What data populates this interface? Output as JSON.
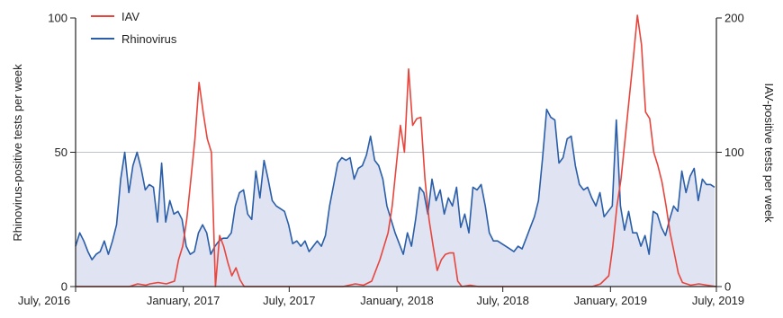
{
  "chart_data": {
    "type": "line",
    "x_axis": {
      "type": "date",
      "range": [
        "2016-07-01",
        "2019-07-01"
      ],
      "ticks": [
        {
          "date": "2016-07-01",
          "label": "July, 2016"
        },
        {
          "date": "2017-01-01",
          "label": "January, 2017"
        },
        {
          "date": "2017-07-01",
          "label": "July, 2017"
        },
        {
          "date": "2018-01-01",
          "label": "January, 2018"
        },
        {
          "date": "2018-07-01",
          "label": "July, 2018"
        },
        {
          "date": "2019-01-01",
          "label": "January, 2019"
        },
        {
          "date": "2019-07-01",
          "label": "July, 2019"
        }
      ]
    },
    "y_left": {
      "label": "Rhinovirus-positive tests per week",
      "range": [
        0,
        100
      ],
      "ticks": [
        0,
        50,
        100
      ]
    },
    "y_right": {
      "label": "IAV-positive tests per week",
      "range": [
        0,
        200
      ],
      "ticks": [
        0,
        100,
        200
      ]
    },
    "grid": {
      "horizontal": [
        50
      ]
    },
    "legend": {
      "placement": "top-left",
      "entries": [
        {
          "name": "IAV",
          "color": "#e8453c"
        },
        {
          "name": "Rhinovirus",
          "color": "#2a5ea8"
        }
      ]
    },
    "series": [
      {
        "name": "Rhinovirus",
        "axis": "left",
        "color": "#2a5ea8",
        "fill": "#dfe3f2",
        "points": [
          [
            "2016-07-01",
            15
          ],
          [
            "2016-07-08",
            20
          ],
          [
            "2016-07-15",
            17
          ],
          [
            "2016-07-22",
            13
          ],
          [
            "2016-07-29",
            10
          ],
          [
            "2016-08-05",
            12
          ],
          [
            "2016-08-12",
            13
          ],
          [
            "2016-08-19",
            17
          ],
          [
            "2016-08-26",
            12
          ],
          [
            "2016-09-02",
            17
          ],
          [
            "2016-09-09",
            23
          ],
          [
            "2016-09-16",
            40
          ],
          [
            "2016-09-23",
            50
          ],
          [
            "2016-09-30",
            35
          ],
          [
            "2016-10-07",
            45
          ],
          [
            "2016-10-14",
            50
          ],
          [
            "2016-10-21",
            44
          ],
          [
            "2016-10-28",
            36
          ],
          [
            "2016-11-04",
            38
          ],
          [
            "2016-11-11",
            37
          ],
          [
            "2016-11-18",
            24
          ],
          [
            "2016-11-25",
            46
          ],
          [
            "2016-12-02",
            24
          ],
          [
            "2016-12-09",
            32
          ],
          [
            "2016-12-16",
            27
          ],
          [
            "2016-12-23",
            28
          ],
          [
            "2016-12-30",
            25
          ],
          [
            "2017-01-06",
            15
          ],
          [
            "2017-01-13",
            12
          ],
          [
            "2017-01-20",
            13
          ],
          [
            "2017-01-27",
            20
          ],
          [
            "2017-02-03",
            23
          ],
          [
            "2017-02-10",
            20
          ],
          [
            "2017-02-17",
            12
          ],
          [
            "2017-02-24",
            15
          ],
          [
            "2017-03-03",
            17
          ],
          [
            "2017-03-10",
            18
          ],
          [
            "2017-03-17",
            18
          ],
          [
            "2017-03-24",
            20
          ],
          [
            "2017-03-31",
            30
          ],
          [
            "2017-04-07",
            35
          ],
          [
            "2017-04-14",
            36
          ],
          [
            "2017-04-21",
            27
          ],
          [
            "2017-04-28",
            25
          ],
          [
            "2017-05-05",
            43
          ],
          [
            "2017-05-12",
            33
          ],
          [
            "2017-05-19",
            47
          ],
          [
            "2017-05-26",
            40
          ],
          [
            "2017-06-02",
            32
          ],
          [
            "2017-06-09",
            30
          ],
          [
            "2017-06-16",
            29
          ],
          [
            "2017-06-23",
            28
          ],
          [
            "2017-06-30",
            23
          ],
          [
            "2017-07-07",
            16
          ],
          [
            "2017-07-14",
            17
          ],
          [
            "2017-07-21",
            15
          ],
          [
            "2017-07-28",
            17
          ],
          [
            "2017-08-04",
            13
          ],
          [
            "2017-08-11",
            15
          ],
          [
            "2017-08-18",
            17
          ],
          [
            "2017-08-25",
            15
          ],
          [
            "2017-09-01",
            19
          ],
          [
            "2017-09-08",
            30
          ],
          [
            "2017-09-15",
            38
          ],
          [
            "2017-09-22",
            46
          ],
          [
            "2017-09-29",
            48
          ],
          [
            "2017-10-06",
            47
          ],
          [
            "2017-10-13",
            48
          ],
          [
            "2017-10-20",
            40
          ],
          [
            "2017-10-27",
            44
          ],
          [
            "2017-11-03",
            45
          ],
          [
            "2017-11-10",
            49
          ],
          [
            "2017-11-17",
            56
          ],
          [
            "2017-11-24",
            47
          ],
          [
            "2017-12-01",
            45
          ],
          [
            "2017-12-08",
            40
          ],
          [
            "2017-12-15",
            30
          ],
          [
            "2017-12-22",
            25
          ],
          [
            "2017-12-29",
            20
          ],
          [
            "2018-01-05",
            16
          ],
          [
            "2018-01-12",
            12
          ],
          [
            "2018-01-19",
            20
          ],
          [
            "2018-01-26",
            15
          ],
          [
            "2018-02-02",
            25
          ],
          [
            "2018-02-09",
            37
          ],
          [
            "2018-02-16",
            35
          ],
          [
            "2018-02-23",
            27
          ],
          [
            "2018-03-02",
            40
          ],
          [
            "2018-03-09",
            32
          ],
          [
            "2018-03-16",
            36
          ],
          [
            "2018-03-23",
            27
          ],
          [
            "2018-03-30",
            33
          ],
          [
            "2018-04-06",
            30
          ],
          [
            "2018-04-13",
            37
          ],
          [
            "2018-04-20",
            22
          ],
          [
            "2018-04-27",
            27
          ],
          [
            "2018-05-04",
            20
          ],
          [
            "2018-05-11",
            37
          ],
          [
            "2018-05-18",
            36
          ],
          [
            "2018-05-25",
            38
          ],
          [
            "2018-06-01",
            30
          ],
          [
            "2018-06-08",
            20
          ],
          [
            "2018-06-15",
            17
          ],
          [
            "2018-06-22",
            17
          ],
          [
            "2018-06-29",
            16
          ],
          [
            "2018-07-06",
            15
          ],
          [
            "2018-07-13",
            14
          ],
          [
            "2018-07-20",
            13
          ],
          [
            "2018-07-27",
            15
          ],
          [
            "2018-08-03",
            14
          ],
          [
            "2018-08-10",
            18
          ],
          [
            "2018-08-17",
            22
          ],
          [
            "2018-08-24",
            26
          ],
          [
            "2018-08-31",
            32
          ],
          [
            "2018-09-07",
            48
          ],
          [
            "2018-09-14",
            66
          ],
          [
            "2018-09-21",
            63
          ],
          [
            "2018-09-28",
            62
          ],
          [
            "2018-10-05",
            46
          ],
          [
            "2018-10-12",
            48
          ],
          [
            "2018-10-19",
            55
          ],
          [
            "2018-10-26",
            56
          ],
          [
            "2018-11-02",
            45
          ],
          [
            "2018-11-09",
            38
          ],
          [
            "2018-11-16",
            36
          ],
          [
            "2018-11-23",
            37
          ],
          [
            "2018-11-30",
            33
          ],
          [
            "2018-12-07",
            30
          ],
          [
            "2018-12-14",
            35
          ],
          [
            "2018-12-21",
            26
          ],
          [
            "2018-12-28",
            28
          ],
          [
            "2019-01-04",
            30
          ],
          [
            "2019-01-11",
            62
          ],
          [
            "2019-01-18",
            30
          ],
          [
            "2019-01-25",
            21
          ],
          [
            "2019-02-01",
            28
          ],
          [
            "2019-02-08",
            20
          ],
          [
            "2019-02-15",
            20
          ],
          [
            "2019-02-22",
            15
          ],
          [
            "2019-03-01",
            19
          ],
          [
            "2019-03-08",
            12
          ],
          [
            "2019-03-15",
            28
          ],
          [
            "2019-03-22",
            27
          ],
          [
            "2019-03-29",
            22
          ],
          [
            "2019-04-05",
            19
          ],
          [
            "2019-04-12",
            25
          ],
          [
            "2019-04-19",
            30
          ],
          [
            "2019-04-26",
            28
          ],
          [
            "2019-05-03",
            43
          ],
          [
            "2019-05-10",
            35
          ],
          [
            "2019-05-17",
            41
          ],
          [
            "2019-05-24",
            44
          ],
          [
            "2019-05-31",
            32
          ],
          [
            "2019-06-07",
            40
          ],
          [
            "2019-06-14",
            38
          ],
          [
            "2019-06-21",
            38
          ],
          [
            "2019-06-28",
            37
          ]
        ]
      },
      {
        "name": "IAV",
        "axis": "right",
        "color": "#e8453c",
        "points": [
          [
            "2016-07-01",
            0
          ],
          [
            "2016-10-01",
            0
          ],
          [
            "2016-10-15",
            2
          ],
          [
            "2016-10-29",
            1
          ],
          [
            "2016-11-05",
            2
          ],
          [
            "2016-11-19",
            3
          ],
          [
            "2016-12-03",
            2
          ],
          [
            "2016-12-17",
            4
          ],
          [
            "2016-12-24",
            20
          ],
          [
            "2016-12-31",
            30
          ],
          [
            "2017-01-07",
            50
          ],
          [
            "2017-01-14",
            80
          ],
          [
            "2017-01-21",
            110
          ],
          [
            "2017-01-28",
            152
          ],
          [
            "2017-02-04",
            130
          ],
          [
            "2017-02-11",
            110
          ],
          [
            "2017-02-18",
            100
          ],
          [
            "2017-02-25",
            0
          ],
          [
            "2017-03-04",
            38
          ],
          [
            "2017-03-11",
            30
          ],
          [
            "2017-03-18",
            18
          ],
          [
            "2017-03-25",
            8
          ],
          [
            "2017-04-01",
            14
          ],
          [
            "2017-04-08",
            5
          ],
          [
            "2017-04-15",
            0
          ],
          [
            "2017-10-01",
            0
          ],
          [
            "2017-10-22",
            2
          ],
          [
            "2017-11-05",
            1
          ],
          [
            "2017-11-19",
            4
          ],
          [
            "2017-12-03",
            20
          ],
          [
            "2017-12-17",
            40
          ],
          [
            "2017-12-24",
            60
          ],
          [
            "2017-12-31",
            90
          ],
          [
            "2018-01-07",
            120
          ],
          [
            "2018-01-14",
            100
          ],
          [
            "2018-01-21",
            162
          ],
          [
            "2018-01-28",
            120
          ],
          [
            "2018-02-04",
            125
          ],
          [
            "2018-02-11",
            126
          ],
          [
            "2018-02-18",
            80
          ],
          [
            "2018-02-25",
            50
          ],
          [
            "2018-03-04",
            30
          ],
          [
            "2018-03-11",
            12
          ],
          [
            "2018-03-18",
            20
          ],
          [
            "2018-03-25",
            24
          ],
          [
            "2018-04-01",
            25
          ],
          [
            "2018-04-08",
            25
          ],
          [
            "2018-04-15",
            4
          ],
          [
            "2018-04-22",
            0
          ],
          [
            "2018-05-06",
            1
          ],
          [
            "2018-05-20",
            0
          ],
          [
            "2018-12-01",
            0
          ],
          [
            "2018-12-15",
            2
          ],
          [
            "2018-12-29",
            8
          ],
          [
            "2019-01-05",
            30
          ],
          [
            "2019-01-12",
            60
          ],
          [
            "2019-01-19",
            80
          ],
          [
            "2019-01-26",
            110
          ],
          [
            "2019-02-02",
            140
          ],
          [
            "2019-02-09",
            170
          ],
          [
            "2019-02-16",
            202
          ],
          [
            "2019-02-23",
            180
          ],
          [
            "2019-03-02",
            130
          ],
          [
            "2019-03-09",
            125
          ],
          [
            "2019-03-16",
            100
          ],
          [
            "2019-03-23",
            90
          ],
          [
            "2019-03-30",
            78
          ],
          [
            "2019-04-06",
            60
          ],
          [
            "2019-04-13",
            40
          ],
          [
            "2019-04-20",
            25
          ],
          [
            "2019-04-27",
            10
          ],
          [
            "2019-05-04",
            3
          ],
          [
            "2019-05-18",
            1
          ],
          [
            "2019-06-01",
            2
          ],
          [
            "2019-06-15",
            1
          ],
          [
            "2019-07-01",
            0
          ]
        ]
      }
    ]
  }
}
